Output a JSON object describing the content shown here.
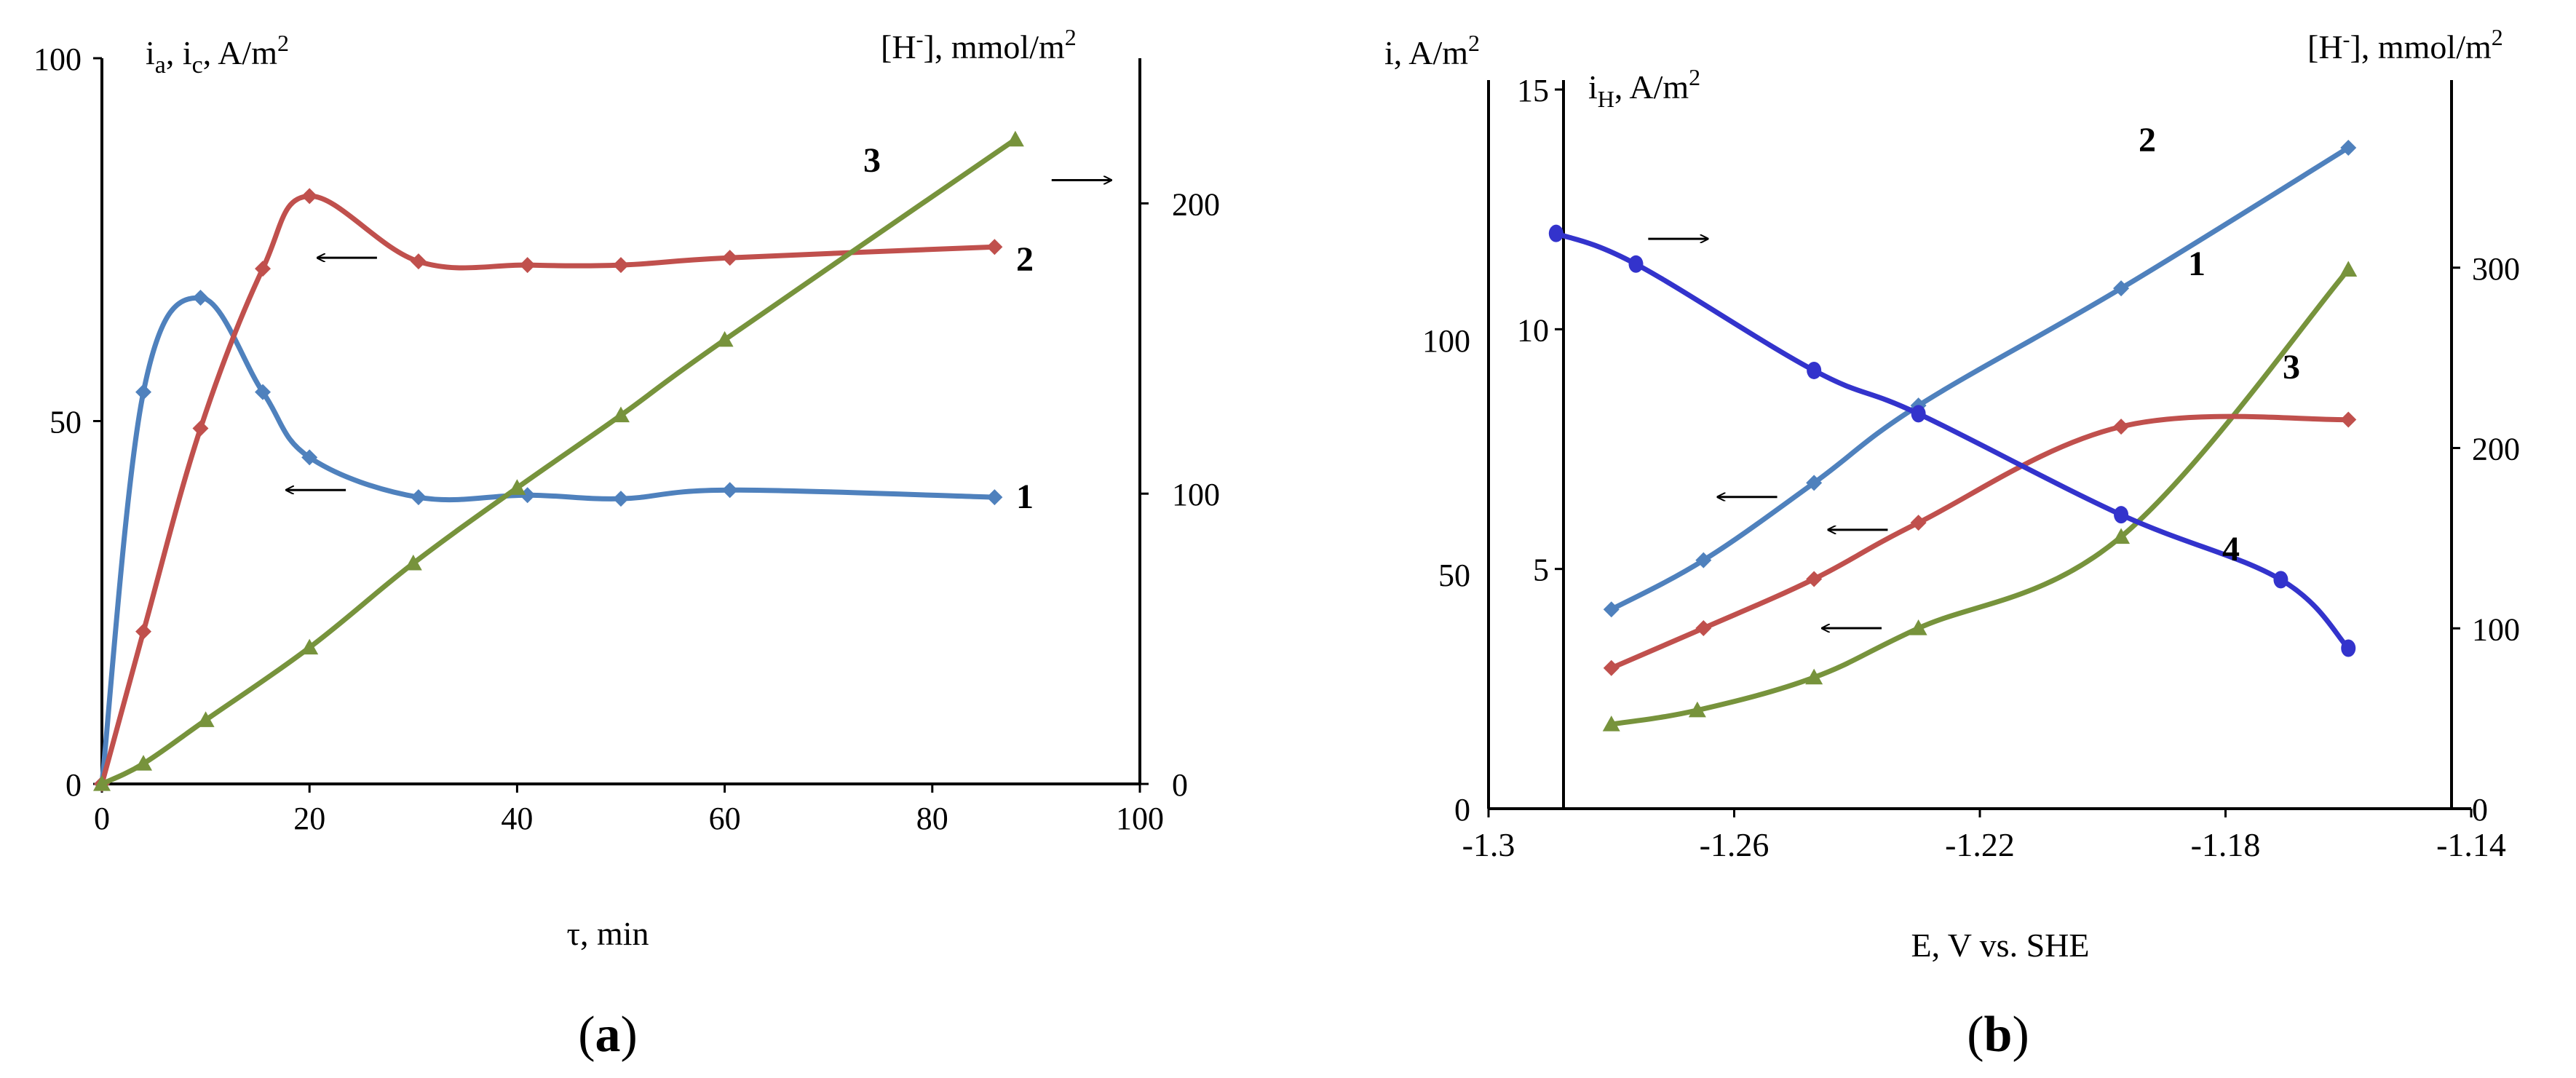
{
  "colors": {
    "blue": "#4f81bd",
    "red": "#c0504d",
    "green": "#77933c",
    "darkblue": "#3333cc",
    "axis": "#000000"
  },
  "chart_data": [
    {
      "panel": "a",
      "type": "line",
      "caption": {
        "open": "(",
        "letter": "a",
        "close": ")"
      },
      "xlabel": "τ, min",
      "ylabel_left": {
        "base": "i",
        "sub1": "a",
        "sep1": ", i",
        "sub2": "c",
        "sep2": ", A/m",
        "sup": "2"
      },
      "ylabel_right": {
        "pre": "[H",
        "sup": "-",
        "post": "], mmol/m",
        "sup2": "2"
      },
      "xlim": [
        0,
        100
      ],
      "xticks": [
        "0",
        "20",
        "40",
        "60",
        "80",
        "100"
      ],
      "ylim_left": [
        0,
        100
      ],
      "yticks_left": [
        "0",
        "50",
        "100"
      ],
      "ylim_right": [
        0,
        250
      ],
      "yticks_right": [
        "0",
        "100",
        "200"
      ],
      "grid": false,
      "series": [
        {
          "label": "1",
          "axis": "left",
          "color_key": "blue",
          "marker": "diamond",
          "points": [
            [
              0,
              0
            ],
            [
              4,
              54
            ],
            [
              9.5,
              67
            ],
            [
              15.5,
              54
            ],
            [
              20,
              45
            ],
            [
              30.5,
              39.5
            ],
            [
              41,
              39.8
            ],
            [
              50,
              39.3
            ],
            [
              60.5,
              40.5
            ],
            [
              86,
              39.5
            ]
          ],
          "arrow": {
            "dir": "left",
            "x": 23.5,
            "y": 40.5
          }
        },
        {
          "label": "2",
          "axis": "left",
          "color_key": "red",
          "marker": "diamond",
          "points": [
            [
              0,
              0
            ],
            [
              4,
              21
            ],
            [
              9.5,
              49
            ],
            [
              15.5,
              71
            ],
            [
              20,
              81
            ],
            [
              30.5,
              72
            ],
            [
              41,
              71.5
            ],
            [
              50,
              71.5
            ],
            [
              60.5,
              72.5
            ],
            [
              86,
              74
            ]
          ],
          "arrow": {
            "dir": "left",
            "x": 26.5,
            "y": 72.5
          }
        },
        {
          "label": "3",
          "axis": "right",
          "color_key": "green",
          "marker": "triangle",
          "points": [
            [
              0,
              0
            ],
            [
              4,
              7
            ],
            [
              10,
              22
            ],
            [
              20,
              47
            ],
            [
              30,
              76
            ],
            [
              40,
              102
            ],
            [
              50,
              127
            ],
            [
              60,
              153
            ],
            [
              88,
              222
            ]
          ],
          "arrow": {
            "dir": "right",
            "x": 91.5,
            "y": 208
          }
        }
      ]
    },
    {
      "panel": "b",
      "type": "line",
      "caption": {
        "open": "(",
        "letter": "b",
        "close": ")"
      },
      "xlabel": "E, V vs. SHE",
      "ylabel_outer": {
        "pre": "i, A/m",
        "sup": "2"
      },
      "ylabel_inner": {
        "pre": "i",
        "sub": "H",
        "post": ", A/m",
        "sup": "2"
      },
      "ylabel_right": {
        "pre": "[H",
        "sup": "-",
        "post": "], mmol/m",
        "sup2": "2"
      },
      "xlim": [
        -1.3,
        -1.14
      ],
      "xticks": [
        "-1.3",
        "-1.26",
        "-1.22",
        "-1.18",
        "-1.14"
      ],
      "ylim_outer": [
        0,
        150
      ],
      "yticks_outer": [
        "0",
        "50",
        "100"
      ],
      "ylim_inner": [
        0,
        15
      ],
      "yticks_inner": [
        "5",
        "10",
        "15"
      ],
      "ylim_right": [
        0,
        400
      ],
      "yticks_right": [
        "0",
        "100",
        "200",
        "300"
      ],
      "grid": false,
      "series": [
        {
          "label": "1",
          "axis": "outer",
          "color_key": "green",
          "marker": "triangle",
          "points": [
            [
              -1.28,
              18
            ],
            [
              -1.266,
              21
            ],
            [
              -1.247,
              28
            ],
            [
              -1.23,
              38.5
            ],
            [
              -1.197,
              58
            ],
            [
              -1.16,
              115
            ]
          ],
          "arrow": {
            "dir": "left",
            "x": -1.236,
            "y": 38.5
          }
        },
        {
          "label": "2",
          "axis": "outer",
          "color_key": "blue",
          "marker": "diamond",
          "points": [
            [
              -1.28,
              42.5
            ],
            [
              -1.265,
              53
            ],
            [
              -1.247,
              69.5
            ],
            [
              -1.23,
              86
            ],
            [
              -1.197,
              111
            ],
            [
              -1.16,
              141
            ]
          ],
          "arrow": {
            "dir": "left",
            "x": -1.253,
            "y": 66.5
          }
        },
        {
          "label": "3",
          "axis": "outer",
          "color_key": "red",
          "marker": "diamond",
          "points": [
            [
              -1.28,
              30
            ],
            [
              -1.265,
              38.5
            ],
            [
              -1.247,
              49
            ],
            [
              -1.23,
              61
            ],
            [
              -1.197,
              81.5
            ],
            [
              -1.16,
              83
            ]
          ],
          "arrow": {
            "dir": "left",
            "x": -1.235,
            "y": 59.5
          }
        },
        {
          "label": "4",
          "axis": "right",
          "color_key": "darkblue",
          "marker": "circle",
          "points": [
            [
              -1.289,
              319
            ],
            [
              -1.276,
              302
            ],
            [
              -1.247,
              243
            ],
            [
              -1.23,
              219
            ],
            [
              -1.197,
              163
            ],
            [
              -1.171,
              127
            ],
            [
              -1.16,
              89
            ]
          ],
          "arrow": {
            "dir": "right",
            "x": -1.274,
            "y": 316
          }
        }
      ]
    }
  ]
}
